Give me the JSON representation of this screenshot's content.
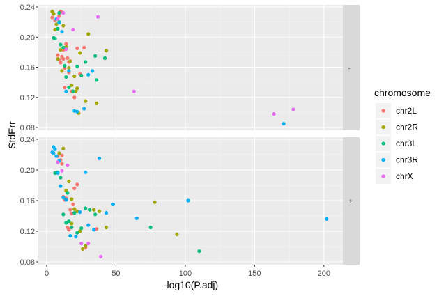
{
  "chart_data": {
    "type": "scatter",
    "xlabel": "-log10(P.adj)",
    "ylabel": "StdErr",
    "xlim": [
      0,
      210
    ],
    "ylim": [
      0.08,
      0.24
    ],
    "x_ticks": [
      0,
      50,
      100,
      150,
      200
    ],
    "y_ticks": [
      0.08,
      0.12,
      0.16,
      0.2,
      0.24
    ],
    "x_tick_labels": [
      "0",
      "50",
      "100",
      "150",
      "200"
    ],
    "y_tick_labels": [
      "0.08",
      "0.12",
      "0.16",
      "0.20",
      "0.24"
    ],
    "grid": true,
    "legend": {
      "title": "chromosome",
      "position": "right",
      "entries": [
        {
          "name": "chr2L",
          "color": "#F8766D"
        },
        {
          "name": "chr2R",
          "color": "#A3A500"
        },
        {
          "name": "chr3L",
          "color": "#00BF7D"
        },
        {
          "name": "chr3R",
          "color": "#00B0F6"
        },
        {
          "name": "chrX",
          "color": "#E76BF3"
        }
      ]
    },
    "panels": [
      {
        "strip": "-",
        "series": [
          {
            "name": "chr2L",
            "points": [
              [
                4,
                0.226
              ],
              [
                6,
                0.222
              ],
              [
                8,
                0.176
              ],
              [
                9,
                0.17
              ],
              [
                10,
                0.166
              ],
              [
                11,
                0.174
              ],
              [
                12,
                0.171
              ],
              [
                13,
                0.159
              ],
              [
                14,
                0.191
              ],
              [
                15,
                0.172
              ],
              [
                10,
                0.234
              ],
              [
                12,
                0.183
              ],
              [
                13,
                0.133
              ],
              [
                16,
                0.167
              ],
              [
                18,
                0.128
              ],
              [
                22,
                0.185
              ],
              [
                27,
                0.186
              ],
              [
                24,
                0.151
              ],
              [
                9,
                0.228
              ],
              [
                11,
                0.233
              ],
              [
                20,
                0.12
              ],
              [
                16,
                0.153
              ]
            ]
          },
          {
            "name": "chr2R",
            "points": [
              [
                4,
                0.234
              ],
              [
                5,
                0.231
              ],
              [
                6,
                0.21
              ],
              [
                8,
                0.171
              ],
              [
                10,
                0.183
              ],
              [
                12,
                0.215
              ],
              [
                14,
                0.187
              ],
              [
                16,
                0.159
              ],
              [
                18,
                0.136
              ],
              [
                20,
                0.148
              ],
              [
                22,
                0.132
              ],
              [
                23,
                0.099
              ],
              [
                24,
                0.179
              ],
              [
                28,
                0.115
              ],
              [
                30,
                0.204
              ],
              [
                36,
                0.112
              ],
              [
                43,
                0.182
              ],
              [
                21,
                0.128
              ],
              [
                17,
                0.168
              ],
              [
                11,
                0.155
              ],
              [
                7,
                0.217
              ]
            ]
          },
          {
            "name": "chr3L",
            "points": [
              [
                5,
                0.199
              ],
              [
                6,
                0.198
              ],
              [
                8,
                0.211
              ],
              [
                9,
                0.22
              ],
              [
                10,
                0.19
              ],
              [
                12,
                0.186
              ],
              [
                14,
                0.147
              ],
              [
                16,
                0.133
              ],
              [
                19,
                0.128
              ],
              [
                22,
                0.161
              ],
              [
                25,
                0.149
              ],
              [
                28,
                0.167
              ],
              [
                35,
                0.175
              ],
              [
                42,
                0.172
              ],
              [
                36,
                0.143
              ],
              [
                13,
                0.162
              ],
              [
                9,
                0.232
              ]
            ]
          },
          {
            "name": "chr3R",
            "points": [
              [
                7,
                0.224
              ],
              [
                9,
                0.219
              ],
              [
                11,
                0.207
              ],
              [
                14,
                0.128
              ],
              [
                16,
                0.155
              ],
              [
                20,
                0.102
              ],
              [
                22,
                0.101
              ],
              [
                27,
                0.105
              ],
              [
                30,
                0.15
              ],
              [
                33,
                0.155
              ],
              [
                171,
                0.085
              ]
            ]
          },
          {
            "name": "chrX",
            "points": [
              [
                8,
                0.224
              ],
              [
                12,
                0.232
              ],
              [
                14,
                0.184
              ],
              [
                19,
                0.21
              ],
              [
                37,
                0.227
              ],
              [
                63,
                0.128
              ],
              [
                164,
                0.098
              ],
              [
                178,
                0.104
              ]
            ]
          }
        ]
      },
      {
        "strip": "+",
        "series": [
          {
            "name": "chr2L",
            "points": [
              [
                8,
                0.218
              ],
              [
                10,
                0.213
              ],
              [
                11,
                0.208
              ],
              [
                12,
                0.165
              ],
              [
                13,
                0.161
              ],
              [
                14,
                0.163
              ],
              [
                15,
                0.125
              ],
              [
                16,
                0.122
              ],
              [
                17,
                0.148
              ],
              [
                18,
                0.143
              ],
              [
                19,
                0.155
              ],
              [
                20,
                0.176
              ],
              [
                22,
                0.181
              ],
              [
                26,
                0.097
              ],
              [
                28,
                0.099
              ],
              [
                36,
                0.123
              ],
              [
                11,
                0.219
              ]
            ]
          },
          {
            "name": "chr2R",
            "points": [
              [
                9,
                0.222
              ],
              [
                12,
                0.228
              ],
              [
                14,
                0.173
              ],
              [
                16,
                0.185
              ],
              [
                18,
                0.162
              ],
              [
                20,
                0.149
              ],
              [
                22,
                0.146
              ],
              [
                24,
                0.12
              ],
              [
                26,
                0.097
              ],
              [
                28,
                0.101
              ],
              [
                34,
                0.148
              ],
              [
                38,
                0.146
              ],
              [
                43,
                0.125
              ],
              [
                78,
                0.158
              ],
              [
                94,
                0.116
              ],
              [
                18,
                0.13
              ]
            ]
          },
          {
            "name": "chr3L",
            "points": [
              [
                6,
                0.196
              ],
              [
                8,
                0.197
              ],
              [
                10,
                0.19
              ],
              [
                12,
                0.142
              ],
              [
                14,
                0.131
              ],
              [
                16,
                0.133
              ],
              [
                18,
                0.125
              ],
              [
                20,
                0.144
              ],
              [
                22,
                0.118
              ],
              [
                25,
                0.124
              ],
              [
                28,
                0.15
              ],
              [
                31,
                0.148
              ],
              [
                35,
                0.142
              ],
              [
                75,
                0.125
              ],
              [
                110,
                0.094
              ],
              [
                15,
                0.17
              ]
            ]
          },
          {
            "name": "chr3R",
            "points": [
              [
                4,
                0.223
              ],
              [
                5,
                0.23
              ],
              [
                6,
                0.227
              ],
              [
                7,
                0.218
              ],
              [
                8,
                0.196
              ],
              [
                9,
                0.212
              ],
              [
                10,
                0.179
              ],
              [
                12,
                0.164
              ],
              [
                14,
                0.161
              ],
              [
                17,
                0.114
              ],
              [
                21,
                0.113
              ],
              [
                24,
                0.145
              ],
              [
                28,
                0.197
              ],
              [
                30,
                0.128
              ],
              [
                34,
                0.122
              ],
              [
                38,
                0.215
              ],
              [
                43,
                0.144
              ],
              [
                48,
                0.155
              ],
              [
                65,
                0.137
              ],
              [
                102,
                0.16
              ],
              [
                202,
                0.136
              ],
              [
                5,
                0.222
              ]
            ]
          },
          {
            "name": "chrX",
            "points": [
              [
                8,
                0.21
              ],
              [
                11,
                0.199
              ],
              [
                15,
                0.206
              ],
              [
                25,
                0.104
              ],
              [
                30,
                0.104
              ],
              [
                39,
                0.087
              ]
            ]
          }
        ]
      }
    ]
  }
}
